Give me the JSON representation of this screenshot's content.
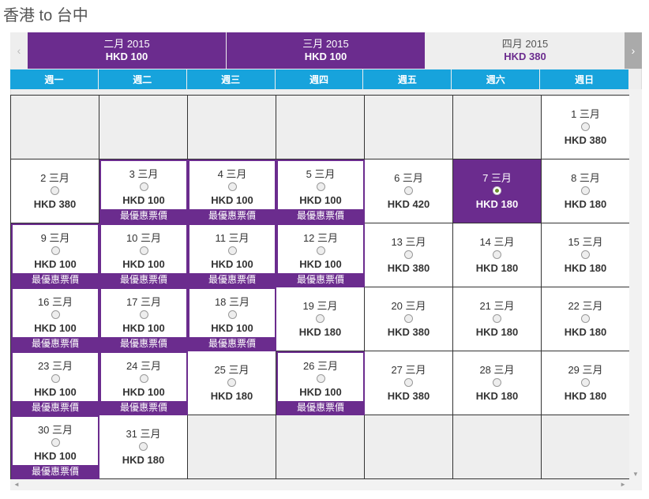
{
  "title": "香港 to 台中",
  "nav": {
    "prev_glyph": "‹",
    "next_glyph": "›"
  },
  "months": [
    {
      "label": "二月 2015",
      "price": "HKD 100"
    },
    {
      "label": "三月 2015",
      "price": "HKD 100"
    },
    {
      "label": "四月 2015",
      "price": "HKD 380"
    }
  ],
  "weekdays": [
    "週一",
    "週二",
    "週三",
    "週四",
    "週五",
    "週六",
    "週日"
  ],
  "best_tag": "最優惠票價",
  "days": [
    {
      "day": "1 三月",
      "price": "HKD 380"
    },
    {
      "day": "2 三月",
      "price": "HKD 380"
    },
    {
      "day": "3 三月",
      "price": "HKD 100",
      "best": true
    },
    {
      "day": "4 三月",
      "price": "HKD 100",
      "best": true
    },
    {
      "day": "5 三月",
      "price": "HKD 100",
      "best": true
    },
    {
      "day": "6 三月",
      "price": "HKD 420"
    },
    {
      "day": "7 三月",
      "price": "HKD 180",
      "selected": true
    },
    {
      "day": "8 三月",
      "price": "HKD 180"
    },
    {
      "day": "9 三月",
      "price": "HKD 100",
      "best": true
    },
    {
      "day": "10 三月",
      "price": "HKD 100",
      "best": true
    },
    {
      "day": "11 三月",
      "price": "HKD 100",
      "best": true
    },
    {
      "day": "12 三月",
      "price": "HKD 100",
      "best": true
    },
    {
      "day": "13 三月",
      "price": "HKD 380"
    },
    {
      "day": "14 三月",
      "price": "HKD 180"
    },
    {
      "day": "15 三月",
      "price": "HKD 180"
    },
    {
      "day": "16 三月",
      "price": "HKD 100",
      "best": true
    },
    {
      "day": "17 三月",
      "price": "HKD 100",
      "best": true
    },
    {
      "day": "18 三月",
      "price": "HKD 100",
      "best": true
    },
    {
      "day": "19 三月",
      "price": "HKD 180"
    },
    {
      "day": "20 三月",
      "price": "HKD 380"
    },
    {
      "day": "21 三月",
      "price": "HKD 180"
    },
    {
      "day": "22 三月",
      "price": "HKD 180"
    },
    {
      "day": "23 三月",
      "price": "HKD 100",
      "best": true
    },
    {
      "day": "24 三月",
      "price": "HKD 100",
      "best": true
    },
    {
      "day": "25 三月",
      "price": "HKD 180"
    },
    {
      "day": "26 三月",
      "price": "HKD 100",
      "best": true
    },
    {
      "day": "27 三月",
      "price": "HKD 380"
    },
    {
      "day": "28 三月",
      "price": "HKD 180"
    },
    {
      "day": "29 三月",
      "price": "HKD 180"
    },
    {
      "day": "30 三月",
      "price": "HKD 100",
      "best": true
    },
    {
      "day": "31 三月",
      "price": "HKD 180"
    }
  ],
  "scroll": {
    "up": "▲",
    "down": "▼",
    "left": "◄",
    "right": "►"
  }
}
